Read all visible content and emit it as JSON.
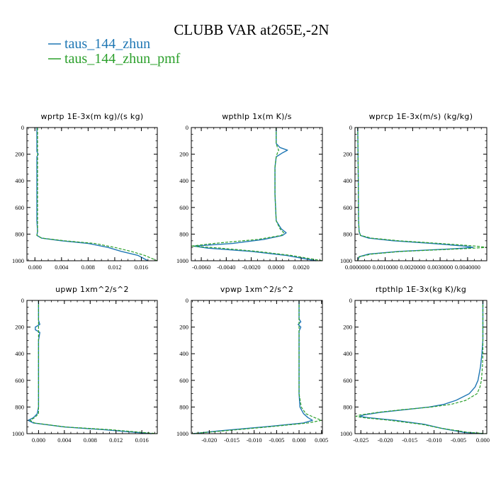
{
  "figure": {
    "title": "CLUBB VAR at265E,-2N",
    "legend": [
      {
        "name": "taus_144_zhun",
        "color": "#1f77b4",
        "dash": "solid"
      },
      {
        "name": "taus_144_zhun_pmf",
        "color": "#2ca02c",
        "dash": "dashed"
      }
    ]
  },
  "chart_data": [
    {
      "type": "line",
      "title": "wprtp   1E-3x(m kg)/(s kg)",
      "xlim": [
        -0.0012,
        0.0184
      ],
      "ylim": [
        1000,
        0
      ],
      "xticks": [
        0.0,
        0.004,
        0.008,
        0.012,
        0.016
      ],
      "xticklabels": [
        "0.000",
        "0.004",
        "0.008",
        "0.012",
        "0.016"
      ],
      "yticks": [
        0,
        200,
        400,
        600,
        800,
        1000
      ],
      "series": [
        {
          "name": "taus_144_zhun",
          "y": [
            0,
            100,
            180,
            200,
            220,
            300,
            500,
            700,
            780,
            810,
            830,
            850,
            870,
            900,
            930,
            960,
            1000
          ],
          "x": [
            0.0003,
            0.0003,
            0.0003,
            0.0005,
            0.0003,
            0.0003,
            0.0003,
            0.0003,
            0.0004,
            0.0003,
            0.001,
            0.004,
            0.008,
            0.011,
            0.013,
            0.0155,
            0.017
          ]
        },
        {
          "name": "taus_144_zhun_pmf",
          "y": [
            0,
            100,
            180,
            200,
            220,
            300,
            500,
            700,
            780,
            810,
            830,
            850,
            870,
            900,
            930,
            960,
            1000
          ],
          "x": [
            0.0004,
            0.0004,
            0.0004,
            0.0004,
            0.0004,
            0.0004,
            0.0004,
            0.0004,
            0.0004,
            0.0003,
            0.001,
            0.0045,
            0.009,
            0.012,
            0.0145,
            0.0165,
            0.0184
          ]
        }
      ]
    },
    {
      "type": "line",
      "title": "wpthlp   1x(m K)/s",
      "xlim": [
        -0.0068,
        0.0037
      ],
      "ylim": [
        1000,
        0
      ],
      "xticks": [
        -0.006,
        -0.004,
        -0.002,
        0.0,
        0.002
      ],
      "xticklabels": [
        "-0.0060",
        "-0.0040",
        "-0.0020",
        "0.0000",
        "0.0020"
      ],
      "yticks": [
        0,
        200,
        400,
        600,
        800,
        1000
      ],
      "series": [
        {
          "name": "taus_144_zhun",
          "y": [
            0,
            120,
            150,
            170,
            190,
            220,
            300,
            500,
            700,
            760,
            790,
            810,
            840,
            870,
            890,
            905,
            930,
            960,
            1000
          ],
          "x": [
            0.0,
            0.0,
            0.0003,
            0.0009,
            0.0005,
            0.0,
            -0.0001,
            -0.0001,
            0.0,
            0.0004,
            0.0008,
            0.0005,
            -0.001,
            -0.0035,
            -0.0066,
            -0.0055,
            -0.002,
            0.0008,
            0.0032
          ]
        },
        {
          "name": "taus_144_zhun_pmf",
          "y": [
            0,
            120,
            150,
            170,
            190,
            220,
            300,
            500,
            700,
            760,
            790,
            810,
            840,
            870,
            890,
            905,
            930,
            960,
            1000
          ],
          "x": [
            0.0,
            0.0,
            0.0001,
            0.0002,
            0.0001,
            0.0,
            -0.0001,
            -0.0001,
            0.0,
            0.0003,
            0.0006,
            0.0004,
            -0.0015,
            -0.005,
            -0.0068,
            -0.0045,
            -0.0015,
            0.0012,
            0.0037
          ]
        }
      ]
    },
    {
      "type": "line",
      "title": "wprcp   1E-3x(m/s) (kg/kg)",
      "xlim": [
        -0.0001,
        0.0047
      ],
      "ylim": [
        1000,
        0
      ],
      "xticks": [
        0.0,
        0.001,
        0.002,
        0.003,
        0.004
      ],
      "xticklabels": [
        "0.0000000",
        "0.0010000",
        "0.0020000",
        "0.0030000",
        "0.0040000"
      ],
      "yticks": [
        0,
        200,
        400,
        600,
        800,
        1000
      ],
      "series": [
        {
          "name": "taus_144_zhun",
          "y": [
            0,
            400,
            700,
            780,
            810,
            830,
            850,
            870,
            890,
            900,
            910,
            930,
            950,
            970,
            1000
          ],
          "x": [
            0.0,
            2e-05,
            3e-05,
            5e-05,
            0.0001,
            0.0004,
            0.0013,
            0.0027,
            0.0039,
            0.0042,
            0.0035,
            0.0015,
            0.0004,
            5e-05,
            0.0
          ]
        },
        {
          "name": "taus_144_zhun_pmf",
          "y": [
            0,
            400,
            700,
            780,
            810,
            830,
            850,
            870,
            890,
            900,
            910,
            930,
            950,
            970,
            1000
          ],
          "x": [
            0.0,
            2e-05,
            3e-05,
            5e-05,
            0.0001,
            0.0005,
            0.0015,
            0.003,
            0.0043,
            0.0047,
            0.0038,
            0.0016,
            0.0005,
            6e-05,
            0.0
          ]
        }
      ]
    },
    {
      "type": "line",
      "title": "upwp   1xm^2/s^2",
      "xlim": [
        -0.0018,
        0.0184
      ],
      "ylim": [
        1000,
        0
      ],
      "xticks": [
        0.0,
        0.004,
        0.008,
        0.012,
        0.016
      ],
      "xticklabels": [
        "0.000",
        "0.004",
        "0.008",
        "0.012",
        "0.016"
      ],
      "yticks": [
        0,
        200,
        400,
        600,
        800,
        1000
      ],
      "series": [
        {
          "name": "taus_144_zhun",
          "y": [
            0,
            150,
            180,
            200,
            220,
            240,
            270,
            300,
            400,
            600,
            800,
            850,
            880,
            900,
            920,
            950,
            970,
            1000
          ],
          "x": [
            0.0,
            0.0,
            0.0002,
            -0.0005,
            -0.0005,
            0.0002,
            0.0001,
            0.0,
            0.0,
            0.0,
            0.0,
            -0.0002,
            -0.0008,
            -0.0016,
            -0.0008,
            0.004,
            0.01,
            0.0175
          ]
        },
        {
          "name": "taus_144_zhun_pmf",
          "y": [
            0,
            150,
            180,
            200,
            220,
            240,
            270,
            300,
            400,
            600,
            800,
            850,
            880,
            900,
            920,
            950,
            970,
            1000
          ],
          "x": [
            0.0,
            0.0,
            0.0,
            0.0,
            0.0,
            0.0,
            0.0,
            0.0,
            0.0,
            0.0,
            0.0,
            0.0,
            -0.0006,
            -0.0013,
            -0.0006,
            0.0042,
            0.011,
            0.0184
          ]
        }
      ]
    },
    {
      "type": "line",
      "title": "vpwp   1xm^2/s^2",
      "xlim": [
        -0.024,
        0.0052
      ],
      "ylim": [
        1000,
        0
      ],
      "xticks": [
        -0.02,
        -0.015,
        -0.01,
        -0.005,
        0.0,
        0.005
      ],
      "xticklabels": [
        "-0.020",
        "-0.015",
        "-0.010",
        "-0.005",
        "0.000",
        "0.005"
      ],
      "yticks": [
        0,
        200,
        400,
        600,
        800,
        1000
      ],
      "series": [
        {
          "name": "taus_144_zhun",
          "y": [
            0,
            140,
            160,
            180,
            200,
            230,
            300,
            500,
            700,
            800,
            850,
            880,
            900,
            920,
            950,
            980,
            1000
          ],
          "x": [
            0.0,
            0.0,
            0.0004,
            -0.0002,
            0.0004,
            0.0,
            0.0,
            0.0,
            0.0,
            0.0002,
            0.001,
            0.002,
            0.003,
            0.001,
            -0.008,
            -0.018,
            -0.0235
          ]
        },
        {
          "name": "taus_144_zhun_pmf",
          "y": [
            0,
            140,
            160,
            180,
            200,
            230,
            300,
            500,
            700,
            800,
            850,
            880,
            900,
            920,
            950,
            980,
            1000
          ],
          "x": [
            0.0,
            0.0,
            0.0,
            0.0,
            0.0,
            0.0,
            0.0,
            0.0,
            0.0,
            0.0005,
            0.0015,
            0.0035,
            0.005,
            0.002,
            -0.007,
            -0.017,
            -0.024
          ]
        }
      ]
    },
    {
      "type": "line",
      "title": "rtpthlp   1E-3x(kg K)/kg",
      "xlim": [
        -0.0262,
        0.0008
      ],
      "ylim": [
        1000,
        0
      ],
      "xticks": [
        -0.025,
        -0.02,
        -0.015,
        -0.01,
        -0.005,
        0.0
      ],
      "xticklabels": [
        "-0.025",
        "-0.020",
        "-0.015",
        "-0.010",
        "-0.005",
        "0.000"
      ],
      "yticks": [
        0,
        200,
        400,
        600,
        800,
        1000
      ],
      "series": [
        {
          "name": "taus_144_zhun",
          "y": [
            0,
            300,
            400,
            500,
            600,
            650,
            700,
            750,
            780,
            800,
            820,
            840,
            860,
            870,
            880,
            900,
            930,
            960,
            990,
            1000
          ],
          "x": [
            0.0,
            0.0,
            -0.0002,
            -0.0005,
            -0.001,
            -0.0016,
            -0.0028,
            -0.0055,
            -0.008,
            -0.011,
            -0.016,
            -0.021,
            -0.0245,
            -0.0252,
            -0.0235,
            -0.018,
            -0.012,
            -0.0085,
            -0.004,
            0.0
          ]
        },
        {
          "name": "taus_144_zhun_pmf",
          "y": [
            0,
            300,
            400,
            500,
            600,
            650,
            700,
            750,
            780,
            800,
            820,
            840,
            860,
            870,
            880,
            900,
            930,
            960,
            990,
            1000
          ],
          "x": [
            0.0,
            0.0,
            0.0,
            -0.0001,
            -0.0003,
            -0.0006,
            -0.0012,
            -0.0035,
            -0.0065,
            -0.0105,
            -0.0165,
            -0.0215,
            -0.0252,
            -0.026,
            -0.0245,
            -0.019,
            -0.0125,
            -0.0085,
            -0.003,
            0.0008
          ]
        }
      ]
    }
  ]
}
